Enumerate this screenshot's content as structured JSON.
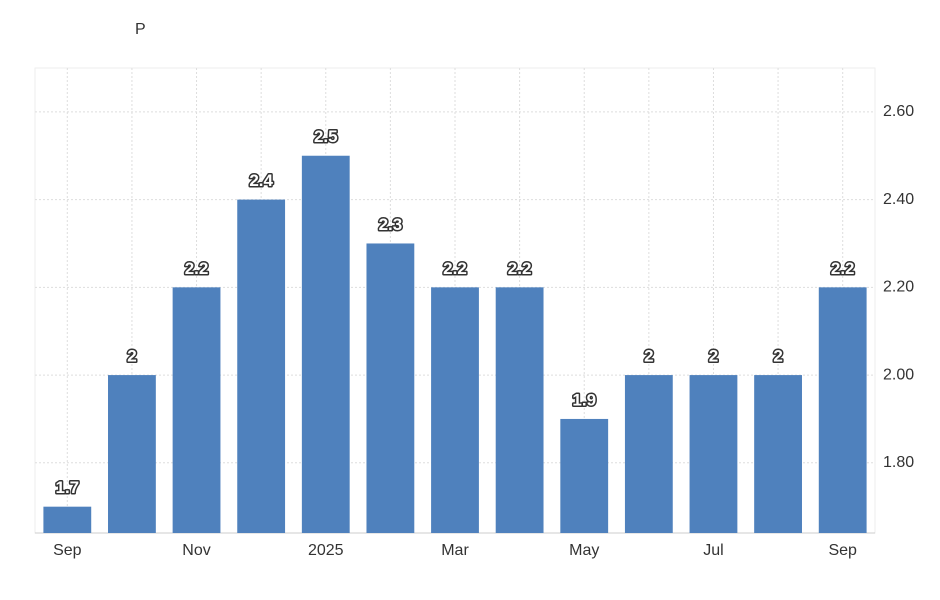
{
  "chart_data": {
    "type": "bar",
    "title": "P",
    "categories": [
      "Sep",
      null,
      "Nov",
      null,
      "2025",
      null,
      "Mar",
      null,
      "May",
      null,
      "Jul",
      null,
      "Sep"
    ],
    "values": [
      1.7,
      2,
      2.2,
      2.4,
      2.5,
      2.3,
      2.2,
      2.2,
      1.9,
      2,
      2,
      2,
      2.2
    ],
    "color": "#4f81bd",
    "ylim": [
      1.64,
      2.7
    ],
    "yticks": [
      {
        "value": 1.8,
        "label": "1.80"
      },
      {
        "value": 2.0,
        "label": "2.00"
      },
      {
        "value": 2.2,
        "label": "2.20"
      },
      {
        "value": 2.4,
        "label": "2.40"
      },
      {
        "value": 2.6,
        "label": "2.60"
      }
    ],
    "grid": true
  }
}
